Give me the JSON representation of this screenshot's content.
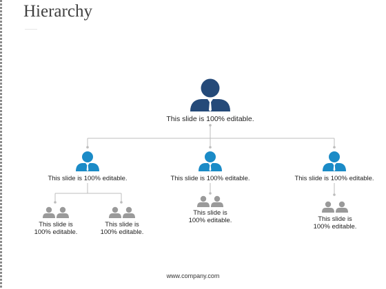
{
  "title": "Hierarchy",
  "footer": "www.company.com",
  "colors": {
    "top_person": "#254a79",
    "mid_person": "#1b8bc7",
    "low_person": "#9a9a9a",
    "connector": "#bcbcbc"
  },
  "nodes": {
    "top": {
      "label": "This slide is 100% editable."
    },
    "mid": [
      {
        "label": "This slide is 100% editable."
      },
      {
        "label": "This slide is 100% editable."
      },
      {
        "label": "This slide is 100% editable."
      }
    ],
    "low": [
      {
        "line1": "This slide is",
        "line2": "100% editable."
      },
      {
        "line1": "This slide is",
        "line2": "100% editable."
      },
      {
        "line1": "This slide is",
        "line2": "100% editable."
      },
      {
        "line1": "This slide is",
        "line2": "100% editable."
      }
    ]
  }
}
